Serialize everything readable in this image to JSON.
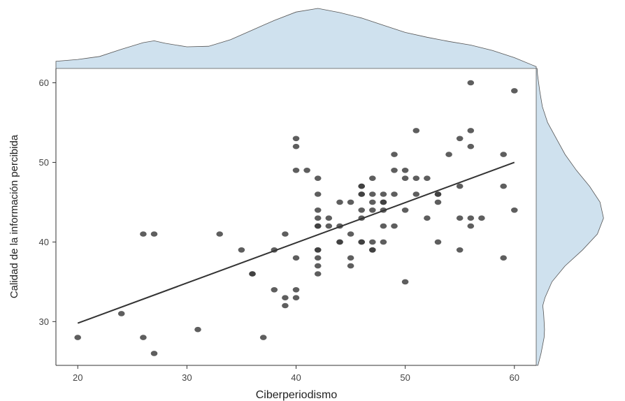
{
  "chart_data": {
    "type": "scatter",
    "title": "",
    "xlabel": "Ciberperiodismo",
    "ylabel": "Calidad de la información percibida",
    "xlim": [
      18,
      62
    ],
    "ylim": [
      24.5,
      61.8
    ],
    "xticks": [
      "20",
      "30",
      "40",
      "50",
      "60"
    ],
    "yticks": [
      "30",
      "40",
      "50",
      "60"
    ],
    "grid": false,
    "legend": "none",
    "point_color": "#3a3a3a",
    "line_color": "#333333",
    "marginal_fill": "#cfe1ee",
    "marginal_stroke": "#555555",
    "regression_line": {
      "x": [
        20,
        60
      ],
      "y": [
        29.8,
        50.0
      ]
    },
    "points": [
      [
        20,
        28
      ],
      [
        24,
        31
      ],
      [
        26,
        41
      ],
      [
        26,
        28
      ],
      [
        27,
        41
      ],
      [
        27,
        26
      ],
      [
        31,
        29
      ],
      [
        33,
        41
      ],
      [
        35,
        39
      ],
      [
        36,
        36
      ],
      [
        36,
        36
      ],
      [
        37,
        28
      ],
      [
        38,
        39
      ],
      [
        38,
        34
      ],
      [
        39,
        41
      ],
      [
        39,
        33
      ],
      [
        39,
        32
      ],
      [
        40,
        53
      ],
      [
        40,
        52
      ],
      [
        40,
        49
      ],
      [
        40,
        38
      ],
      [
        40,
        34
      ],
      [
        40,
        33
      ],
      [
        41,
        49
      ],
      [
        42,
        48
      ],
      [
        42,
        46
      ],
      [
        42,
        44
      ],
      [
        42,
        43
      ],
      [
        42,
        42
      ],
      [
        42,
        42
      ],
      [
        42,
        39
      ],
      [
        42,
        39
      ],
      [
        42,
        38
      ],
      [
        42,
        37
      ],
      [
        42,
        36
      ],
      [
        43,
        43
      ],
      [
        43,
        42
      ],
      [
        44,
        45
      ],
      [
        44,
        42
      ],
      [
        44,
        40
      ],
      [
        44,
        40
      ],
      [
        45,
        45
      ],
      [
        45,
        41
      ],
      [
        45,
        38
      ],
      [
        45,
        37
      ],
      [
        46,
        47
      ],
      [
        46,
        47
      ],
      [
        46,
        46
      ],
      [
        46,
        46
      ],
      [
        46,
        44
      ],
      [
        46,
        43
      ],
      [
        46,
        40
      ],
      [
        46,
        40
      ],
      [
        47,
        48
      ],
      [
        47,
        46
      ],
      [
        47,
        45
      ],
      [
        47,
        44
      ],
      [
        47,
        40
      ],
      [
        47,
        39
      ],
      [
        47,
        39
      ],
      [
        48,
        46
      ],
      [
        48,
        45
      ],
      [
        48,
        45
      ],
      [
        48,
        44
      ],
      [
        48,
        42
      ],
      [
        48,
        40
      ],
      [
        49,
        51
      ],
      [
        49,
        49
      ],
      [
        49,
        46
      ],
      [
        49,
        42
      ],
      [
        50,
        49
      ],
      [
        50,
        48
      ],
      [
        50,
        44
      ],
      [
        50,
        35
      ],
      [
        51,
        54
      ],
      [
        51,
        48
      ],
      [
        51,
        46
      ],
      [
        52,
        48
      ],
      [
        52,
        43
      ],
      [
        53,
        46
      ],
      [
        53,
        46
      ],
      [
        53,
        45
      ],
      [
        53,
        40
      ],
      [
        54,
        51
      ],
      [
        55,
        53
      ],
      [
        55,
        47
      ],
      [
        55,
        43
      ],
      [
        55,
        39
      ],
      [
        56,
        60
      ],
      [
        56,
        54
      ],
      [
        56,
        52
      ],
      [
        56,
        43
      ],
      [
        56,
        42
      ],
      [
        57,
        43
      ],
      [
        59,
        51
      ],
      [
        59,
        47
      ],
      [
        59,
        38
      ],
      [
        60,
        59
      ],
      [
        60,
        44
      ]
    ],
    "x_density": [
      [
        18,
        0.12
      ],
      [
        20,
        0.15
      ],
      [
        22,
        0.2
      ],
      [
        24,
        0.32
      ],
      [
        26,
        0.43
      ],
      [
        27,
        0.46
      ],
      [
        28,
        0.42
      ],
      [
        30,
        0.36
      ],
      [
        32,
        0.37
      ],
      [
        34,
        0.48
      ],
      [
        36,
        0.64
      ],
      [
        38,
        0.8
      ],
      [
        40,
        0.94
      ],
      [
        42,
        1.0
      ],
      [
        44,
        0.93
      ],
      [
        46,
        0.84
      ],
      [
        48,
        0.72
      ],
      [
        50,
        0.6
      ],
      [
        52,
        0.52
      ],
      [
        54,
        0.45
      ],
      [
        56,
        0.39
      ],
      [
        58,
        0.3
      ],
      [
        60,
        0.18
      ],
      [
        62,
        0.03
      ]
    ],
    "y_density": [
      [
        24.5,
        0.02
      ],
      [
        26,
        0.055
      ],
      [
        28,
        0.09
      ],
      [
        29,
        0.095
      ],
      [
        30,
        0.09
      ],
      [
        31,
        0.085
      ],
      [
        32,
        0.075
      ],
      [
        33,
        0.1
      ],
      [
        35,
        0.18
      ],
      [
        37,
        0.33
      ],
      [
        39,
        0.53
      ],
      [
        41,
        0.7
      ],
      [
        43,
        0.77
      ],
      [
        45,
        0.73
      ],
      [
        47,
        0.61
      ],
      [
        49,
        0.46
      ],
      [
        51,
        0.33
      ],
      [
        53,
        0.23
      ],
      [
        55,
        0.13
      ],
      [
        57,
        0.07
      ],
      [
        59,
        0.04
      ],
      [
        61,
        0.015
      ],
      [
        61.8,
        0.01
      ]
    ]
  }
}
